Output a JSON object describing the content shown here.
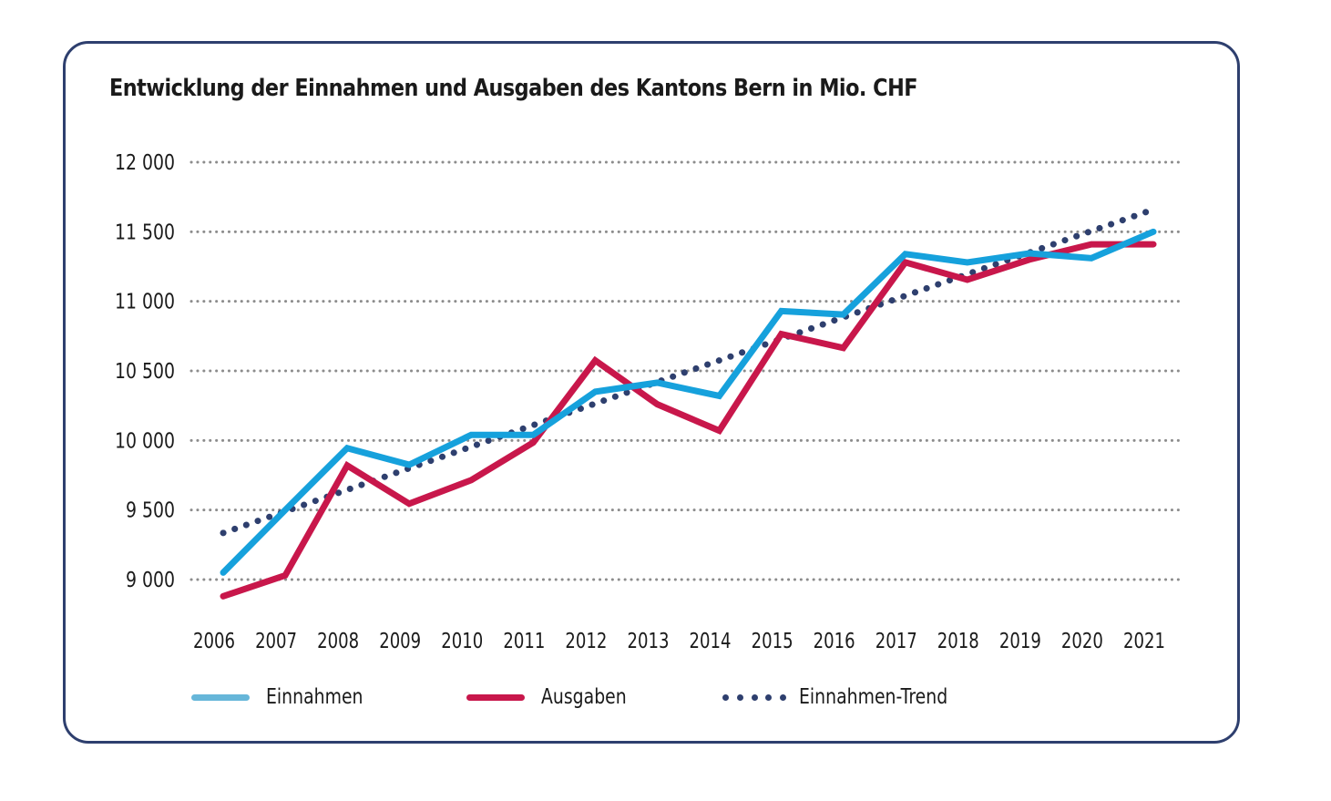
{
  "chart_data": {
    "type": "line",
    "title": "Entwicklung der Einnahmen und Ausgaben des Kantons Bern in Mio. CHF",
    "xlabel": "",
    "ylabel": "",
    "x": [
      "2006",
      "2007",
      "2008",
      "2009",
      "2010",
      "2011",
      "2012",
      "2013",
      "2014",
      "2015",
      "2016",
      "2017",
      "2018",
      "2019",
      "2020",
      "2021"
    ],
    "ylim": [
      9000,
      12000
    ],
    "yticks": [
      12000,
      11500,
      11000,
      10500,
      10000,
      9500,
      9000
    ],
    "ytick_labels": [
      "12 000",
      "11 500",
      "11 000",
      "10 500",
      "10 000",
      "9 500",
      "9 000"
    ],
    "grid": "horizontal-dotted",
    "legend_position": "bottom",
    "series": [
      {
        "name": "Einnahmen",
        "style": "solid",
        "color": "#16a1dc",
        "values": [
          9050,
          9500,
          9945,
          9825,
          10040,
          10040,
          10350,
          10415,
          10320,
          10930,
          10905,
          11340,
          11280,
          11345,
          11310,
          11500
        ]
      },
      {
        "name": "Ausgaben",
        "style": "solid",
        "color": "#c8174b",
        "values": [
          8880,
          9030,
          9820,
          9545,
          9715,
          9985,
          10575,
          10260,
          10070,
          10765,
          10665,
          11280,
          11155,
          11300,
          11410,
          11410
        ]
      },
      {
        "name": "Einnahmen-Trend",
        "style": "dotted",
        "color": "#2e3f6e",
        "values": [
          9335,
          9490,
          9645,
          9800,
          9955,
          10110,
          10265,
          10420,
          10575,
          10730,
          10885,
          11040,
          11195,
          11350,
          11505,
          11660
        ]
      }
    ]
  },
  "legend": {
    "items": [
      {
        "label": "Einnahmen",
        "color": "#66b6d9"
      },
      {
        "label": "Ausgaben",
        "color": "#c8174b"
      },
      {
        "label": "Einnahmen-Trend",
        "color": "#2e3f6e"
      }
    ]
  },
  "colors": {
    "frame": "#2e3f6e",
    "grid": "#8c8c8c"
  }
}
